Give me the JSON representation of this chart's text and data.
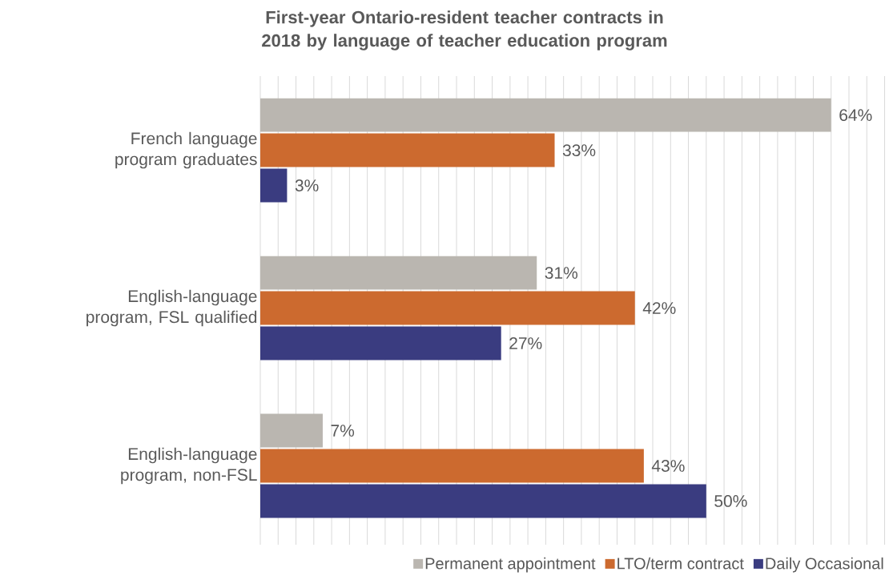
{
  "chart_data": {
    "type": "bar",
    "orientation": "horizontal",
    "title": "First-year Ontario-resident teacher contracts in 2018 by language of teacher education program",
    "categories": [
      "French language program graduates",
      "English-language program, FSL qualified",
      "English-language program, non-FSL"
    ],
    "series": [
      {
        "name": "Permanent appointment",
        "color": "#bab6b0",
        "values": [
          64,
          31,
          7
        ],
        "value_labels": [
          "64%",
          "31%",
          "7%"
        ]
      },
      {
        "name": "LTO/term contract",
        "color": "#cc6a2f",
        "values": [
          33,
          42,
          43
        ],
        "value_labels": [
          "33%",
          "42%",
          "43%"
        ]
      },
      {
        "name": "Daily Occasional",
        "color": "#3a3c80",
        "values": [
          3,
          27,
          50
        ],
        "value_labels": [
          "3%",
          "27%",
          "50%"
        ]
      }
    ],
    "grid": "x",
    "legend": "bottom right",
    "tick_labels": "y"
  }
}
